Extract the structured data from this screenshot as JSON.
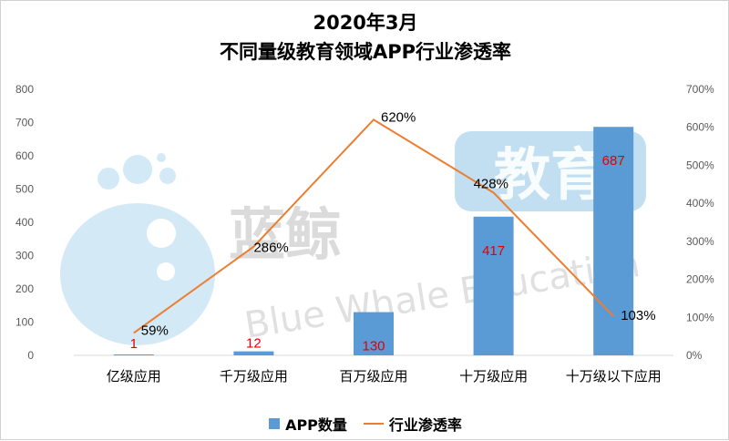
{
  "title_line1": "2020年3月",
  "title_line2": "不同量级教育领域APP行业渗透率",
  "watermark": {
    "brand_cn_1": "蓝鲸",
    "brand_cn_2": "教育",
    "brand_en": "Blue Whale Education"
  },
  "colors": {
    "bar": "#5b9bd5",
    "line": "#ed7d31",
    "bar_label": "#e00000",
    "axis_text": "#595959",
    "watermark_blue": "#4a9fd8",
    "watermark_gray": "#9a9a9a"
  },
  "chart_data": {
    "type": "bar",
    "title": "2020年3月 不同量级教育领域APP行业渗透率",
    "categories": [
      "亿级应用",
      "千万级应用",
      "百万级应用",
      "十万级应用",
      "十万级以下应用"
    ],
    "series": [
      {
        "name": "APP数量",
        "type": "bar",
        "axis": "left",
        "values": [
          1,
          12,
          130,
          417,
          687
        ],
        "labels": [
          "1",
          "12",
          "130",
          "417",
          "687"
        ]
      },
      {
        "name": "行业渗透率",
        "type": "line",
        "axis": "right",
        "values": [
          59,
          286,
          620,
          428,
          103
        ],
        "labels": [
          "59%",
          "286%",
          "620%",
          "428%",
          "103%"
        ]
      }
    ],
    "y_left": {
      "min": 0,
      "max": 800,
      "ticks": [
        "0",
        "100",
        "200",
        "300",
        "400",
        "500",
        "600",
        "700",
        "800"
      ]
    },
    "y_right": {
      "min": 0,
      "max": 700,
      "unit": "%",
      "ticks": [
        "0%",
        "100%",
        "200%",
        "300%",
        "400%",
        "500%",
        "600%",
        "700%"
      ]
    },
    "grid": false,
    "legend_position": "bottom"
  }
}
